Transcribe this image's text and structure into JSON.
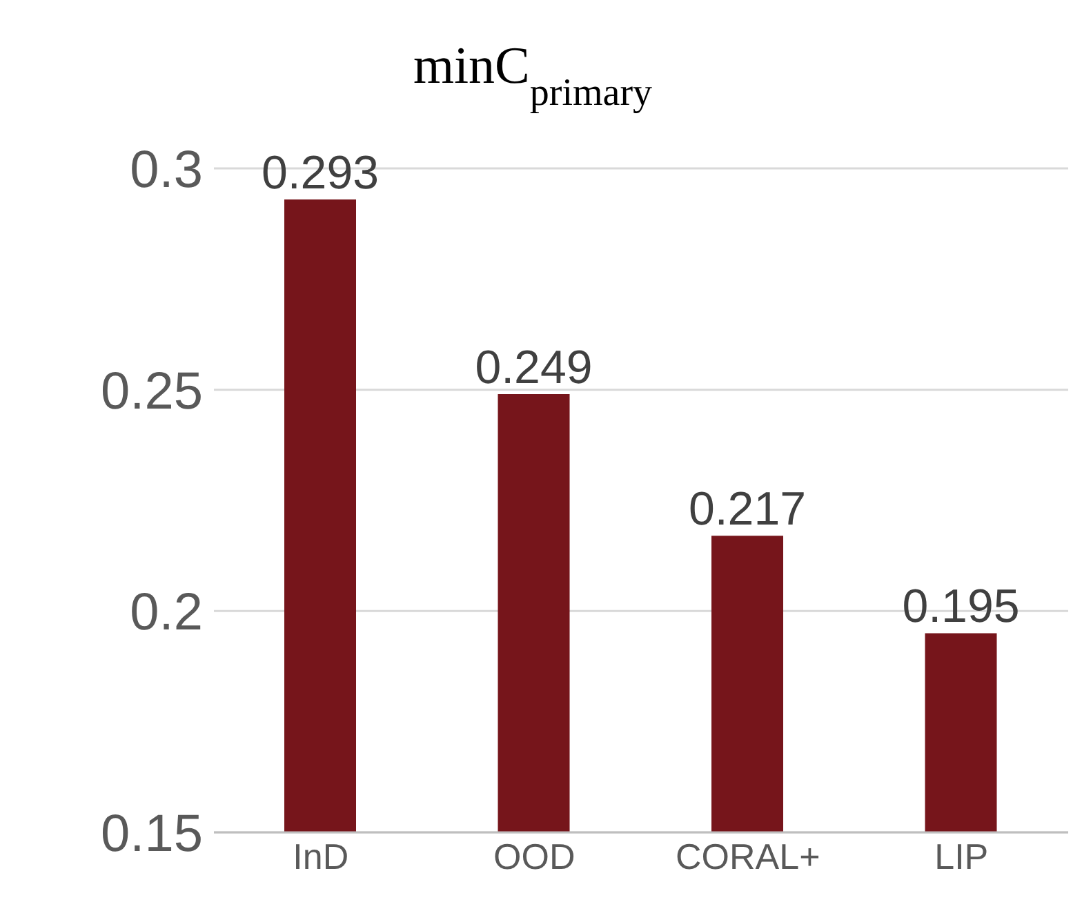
{
  "chart_data": {
    "type": "bar",
    "title": "minC$_{primary}$",
    "categories": [
      "InD",
      "OOD",
      "CORAL+",
      "LIP"
    ],
    "values": [
      0.293,
      0.249,
      0.217,
      0.195
    ],
    "color": "#76151b",
    "ylim": [
      0.15,
      0.3
    ],
    "yticks": [
      0.15,
      0.2,
      0.25,
      0.3
    ],
    "grid": "y",
    "data_labels": true
  }
}
